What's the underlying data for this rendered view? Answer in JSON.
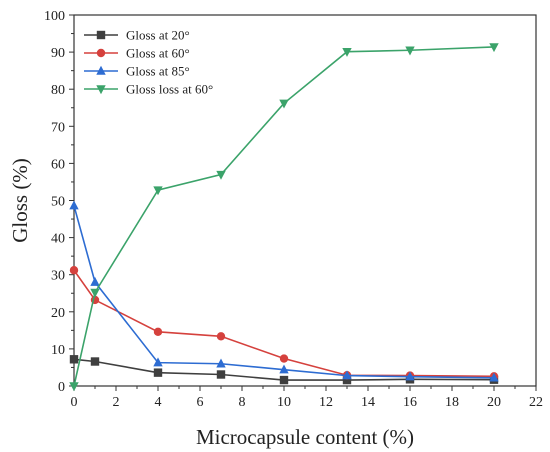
{
  "chart_data": {
    "type": "line",
    "xlabel": "Microcapsule content (%)",
    "ylabel": "Gloss (%)",
    "xlim": [
      0,
      22
    ],
    "ylim": [
      0,
      100
    ],
    "x_ticks": [
      0,
      2,
      4,
      6,
      8,
      10,
      12,
      14,
      16,
      18,
      20,
      22
    ],
    "y_ticks": [
      0,
      10,
      20,
      30,
      40,
      50,
      60,
      70,
      80,
      90,
      100
    ],
    "x": [
      0,
      1,
      4,
      7,
      10,
      13,
      16,
      20
    ],
    "grid": false,
    "legend_position": "top-left",
    "series": [
      {
        "name": "Gloss at 20°",
        "color": "#3f3f3f",
        "marker": "square",
        "values": [
          7.2,
          6.6,
          3.6,
          3.1,
          1.6,
          1.6,
          1.8,
          1.7
        ]
      },
      {
        "name": "Gloss at 60°",
        "color": "#d5413d",
        "marker": "circle",
        "values": [
          31.2,
          23.2,
          14.6,
          13.4,
          7.4,
          2.9,
          2.8,
          2.6
        ]
      },
      {
        "name": "Gloss at 85°",
        "color": "#2d6cd2",
        "marker": "triangle-up",
        "values": [
          48.6,
          28.0,
          6.3,
          6.0,
          4.4,
          2.8,
          2.5,
          2.2
        ]
      },
      {
        "name": "Gloss loss at 60°",
        "color": "#3ba36a",
        "marker": "triangle-down",
        "values": [
          0,
          25.2,
          52.8,
          57.0,
          76.2,
          90.1,
          90.5,
          91.4
        ]
      }
    ]
  }
}
